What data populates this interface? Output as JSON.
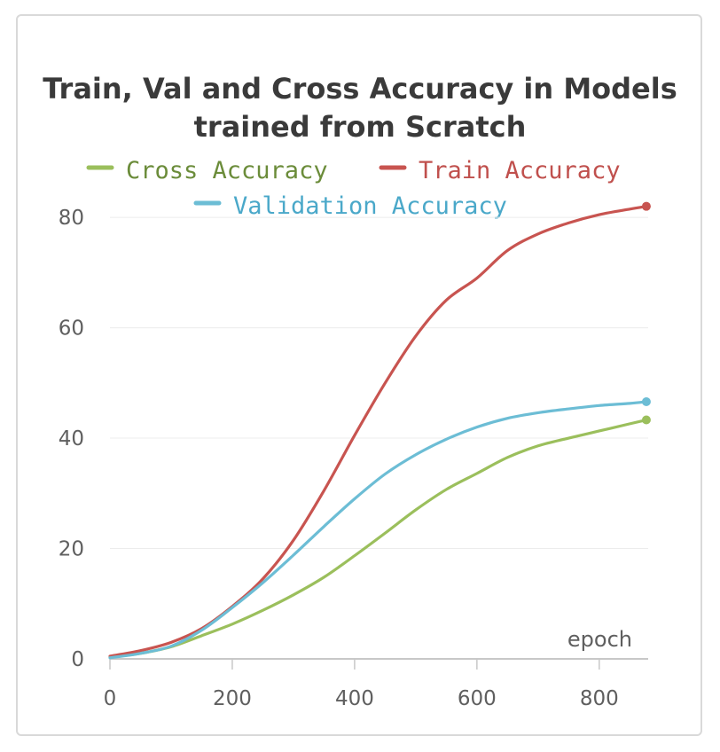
{
  "chart_data": {
    "type": "line",
    "title": "Train, Val and Cross Accuracy in Models trained from Scratch",
    "title_lines": [
      "Train, Val and Cross Accuracy in Models",
      "trained from Scratch"
    ],
    "xlabel": "epoch",
    "ylabel": "",
    "xlim": [
      0,
      880
    ],
    "ylim": [
      0,
      85
    ],
    "xticks": [
      0,
      200,
      400,
      600,
      800
    ],
    "yticks": [
      0,
      20,
      40,
      60,
      80
    ],
    "grid": true,
    "legend_position": "top",
    "series": [
      {
        "name": "Cross Accuracy",
        "color": "#9bbf5c",
        "label_color": "#6b8c3a",
        "x": [
          0,
          50,
          100,
          150,
          200,
          250,
          300,
          350,
          400,
          450,
          500,
          550,
          600,
          650,
          700,
          750,
          800,
          850,
          877
        ],
        "values": [
          0.3,
          1.0,
          2.2,
          4.2,
          6.3,
          8.8,
          11.6,
          14.8,
          18.7,
          22.8,
          27.0,
          30.7,
          33.6,
          36.5,
          38.6,
          40.0,
          41.3,
          42.6,
          43.3
        ]
      },
      {
        "name": "Train Accuracy",
        "color": "#c85450",
        "label_color": "#c0504d",
        "x": [
          0,
          50,
          100,
          150,
          200,
          250,
          300,
          350,
          400,
          450,
          500,
          550,
          600,
          650,
          700,
          750,
          800,
          850,
          877
        ],
        "values": [
          0.5,
          1.5,
          3.0,
          5.5,
          9.5,
          14.5,
          21.5,
          30.5,
          40.5,
          50.0,
          58.5,
          65.0,
          69.0,
          74.0,
          77.0,
          79.0,
          80.5,
          81.5,
          82.0
        ]
      },
      {
        "name": "Validation Accuracy",
        "color": "#6cbdd5",
        "label_color": "#4aa8c9",
        "x": [
          0,
          50,
          100,
          150,
          200,
          250,
          300,
          350,
          400,
          450,
          500,
          550,
          600,
          650,
          700,
          750,
          800,
          850,
          877
        ],
        "values": [
          0.2,
          1.0,
          2.3,
          5.2,
          9.3,
          13.8,
          18.8,
          24.0,
          29.0,
          33.5,
          37.0,
          39.8,
          42.0,
          43.6,
          44.6,
          45.3,
          45.9,
          46.3,
          46.6
        ]
      }
    ]
  }
}
